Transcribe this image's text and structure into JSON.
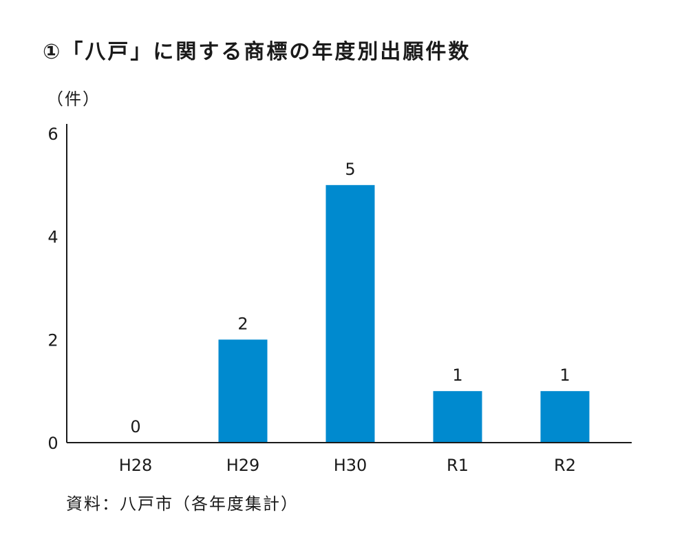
{
  "title": "①「八戸」に関する商標の年度別出願件数",
  "source": "資料：八戸市（各年度集計）",
  "colors": {
    "bar": "#008ACF",
    "axis": "#1a1a1a",
    "text": "#1a1a1a"
  },
  "chart_data": {
    "type": "bar",
    "title": "①「八戸」に関する商標の年度別出願件数",
    "xlabel": "",
    "ylabel": "（件）",
    "categories": [
      "H28",
      "H29",
      "H30",
      "R1",
      "R2"
    ],
    "values": [
      0,
      2,
      5,
      1,
      1
    ],
    "data_labels": [
      "0",
      "2",
      "5",
      "1",
      "1"
    ],
    "ylim": [
      0,
      6
    ],
    "yticks": [
      0,
      2,
      4,
      6
    ],
    "grid": false,
    "legend": "none"
  }
}
